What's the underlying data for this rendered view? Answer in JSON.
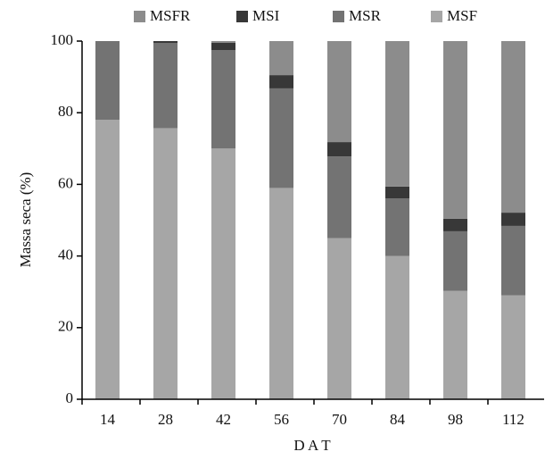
{
  "chart_data": {
    "type": "stacked-bar",
    "y_label": "Massa seca (%)",
    "x_label": "D A T",
    "categories": [
      "14",
      "28",
      "42",
      "56",
      "70",
      "84",
      "98",
      "112"
    ],
    "series": [
      {
        "name": "MSF",
        "color": "#a6a6a6",
        "values": [
          78,
          75.7,
          70,
          59,
          45,
          40,
          30.3,
          29
        ]
      },
      {
        "name": "MSR",
        "color": "#737373",
        "values": [
          22,
          23.8,
          27.5,
          27.8,
          22.8,
          16.1,
          16.6,
          19.4
        ]
      },
      {
        "name": "MSI",
        "color": "#383838",
        "values": [
          0,
          0.5,
          2,
          3.7,
          4,
          3.3,
          3.5,
          3.7
        ]
      },
      {
        "name": "MSFR",
        "color": "#8c8c8c",
        "values": [
          0,
          0,
          0.5,
          9.5,
          28.2,
          40.6,
          49.6,
          47.9
        ]
      }
    ],
    "ylim": [
      0,
      100
    ],
    "yticks": [
      0,
      20,
      40,
      60,
      80,
      100
    ],
    "grid": false
  }
}
